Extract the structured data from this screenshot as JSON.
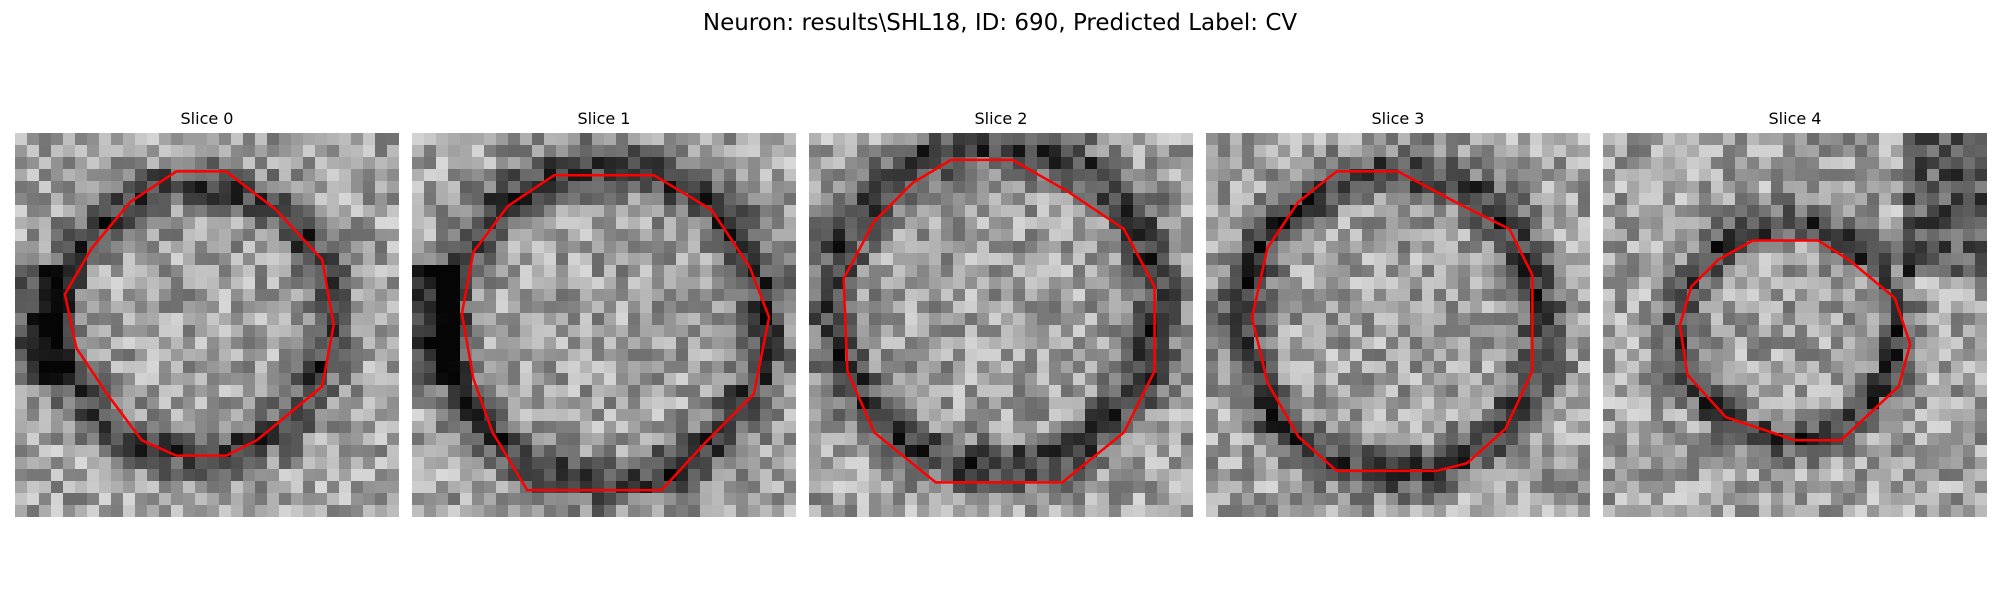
{
  "figure": {
    "title": "Neuron: results\\SHL18, ID: 690, Predicted Label: CV"
  },
  "contour_color": "#ff0000",
  "slices": [
    {
      "title": "Slice 0",
      "seed": 11,
      "dark_side": "left",
      "ring": [
        [
          0.42,
          0.1
        ],
        [
          0.55,
          0.1
        ],
        [
          0.68,
          0.2
        ],
        [
          0.8,
          0.33
        ],
        [
          0.83,
          0.5
        ],
        [
          0.8,
          0.66
        ],
        [
          0.63,
          0.8
        ],
        [
          0.55,
          0.84
        ],
        [
          0.42,
          0.84
        ],
        [
          0.33,
          0.8
        ],
        [
          0.24,
          0.68
        ],
        [
          0.16,
          0.56
        ],
        [
          0.13,
          0.42
        ],
        [
          0.2,
          0.3
        ],
        [
          0.3,
          0.18
        ]
      ]
    },
    {
      "title": "Slice 1",
      "seed": 23,
      "dark_side": "left",
      "ring": [
        [
          0.37,
          0.11
        ],
        [
          0.63,
          0.11
        ],
        [
          0.78,
          0.2
        ],
        [
          0.88,
          0.35
        ],
        [
          0.93,
          0.48
        ],
        [
          0.89,
          0.68
        ],
        [
          0.77,
          0.8
        ],
        [
          0.65,
          0.93
        ],
        [
          0.3,
          0.93
        ],
        [
          0.21,
          0.78
        ],
        [
          0.16,
          0.64
        ],
        [
          0.13,
          0.47
        ],
        [
          0.16,
          0.31
        ],
        [
          0.25,
          0.19
        ]
      ]
    },
    {
      "title": "Slice 2",
      "seed": 37,
      "dark_side": "none",
      "ring": [
        [
          0.37,
          0.07
        ],
        [
          0.53,
          0.07
        ],
        [
          0.67,
          0.15
        ],
        [
          0.82,
          0.25
        ],
        [
          0.9,
          0.4
        ],
        [
          0.9,
          0.62
        ],
        [
          0.82,
          0.78
        ],
        [
          0.66,
          0.91
        ],
        [
          0.33,
          0.91
        ],
        [
          0.17,
          0.78
        ],
        [
          0.1,
          0.62
        ],
        [
          0.09,
          0.38
        ],
        [
          0.17,
          0.23
        ],
        [
          0.27,
          0.13
        ]
      ]
    },
    {
      "title": "Slice 3",
      "seed": 51,
      "dark_side": "none",
      "ring": [
        [
          0.34,
          0.1
        ],
        [
          0.5,
          0.1
        ],
        [
          0.65,
          0.18
        ],
        [
          0.79,
          0.25
        ],
        [
          0.85,
          0.37
        ],
        [
          0.85,
          0.62
        ],
        [
          0.78,
          0.77
        ],
        [
          0.68,
          0.86
        ],
        [
          0.6,
          0.88
        ],
        [
          0.34,
          0.88
        ],
        [
          0.24,
          0.79
        ],
        [
          0.16,
          0.65
        ],
        [
          0.12,
          0.48
        ],
        [
          0.16,
          0.3
        ],
        [
          0.24,
          0.18
        ]
      ]
    },
    {
      "title": "Slice 4",
      "seed": 67,
      "dark_side": "right",
      "ring": [
        [
          0.39,
          0.28
        ],
        [
          0.56,
          0.28
        ],
        [
          0.64,
          0.33
        ],
        [
          0.76,
          0.43
        ],
        [
          0.8,
          0.55
        ],
        [
          0.77,
          0.66
        ],
        [
          0.62,
          0.8
        ],
        [
          0.5,
          0.8
        ],
        [
          0.32,
          0.74
        ],
        [
          0.22,
          0.63
        ],
        [
          0.2,
          0.5
        ],
        [
          0.23,
          0.4
        ],
        [
          0.3,
          0.33
        ]
      ]
    }
  ]
}
